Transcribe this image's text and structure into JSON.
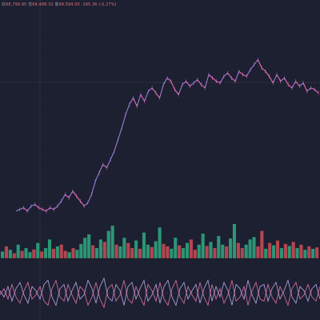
{
  "header": {
    "ohlc_label": "收",
    "close": "68,799.95",
    "low_label": "低",
    "low": "68,488.32",
    "vol_label": "量",
    "vol": "68,594.00",
    "change": "-185.36 (-0.27%)"
  },
  "colors": {
    "background": "#1c2030",
    "price_up": "#9c78d6",
    "price_down": "#e46ab0",
    "volume_up": "#2fa37e",
    "volume_down": "#c74a55",
    "osc_a": "#b9a6e8",
    "osc_b": "#e070a8",
    "crosshair": "#5b6275",
    "midline": "#4a5064"
  },
  "chart_data": [
    {
      "type": "line",
      "title": "",
      "xlabel": "",
      "ylabel": "",
      "note": "price panel, normalized price level 0-100 (no axis printed)",
      "ylim": [
        0,
        100
      ],
      "x": [
        0,
        1,
        2,
        3,
        4,
        5,
        6,
        7,
        8,
        9,
        10,
        11,
        12,
        13,
        14,
        15,
        16,
        17,
        18,
        19,
        20,
        21,
        22,
        23,
        24,
        25,
        26,
        27,
        28,
        29,
        30,
        31,
        32,
        33,
        34,
        35,
        36,
        37,
        38,
        39,
        40,
        41,
        42,
        43,
        44,
        45,
        46,
        47,
        48,
        49,
        50,
        51,
        52,
        53,
        54,
        55,
        56,
        57,
        58,
        59,
        60,
        61,
        62,
        63,
        64,
        65,
        66,
        67,
        68,
        69,
        70,
        71,
        72,
        73,
        74,
        75,
        76,
        77,
        78,
        79,
        80
      ],
      "values": [
        2,
        3,
        4,
        2,
        5,
        6,
        4,
        3,
        2,
        4,
        3,
        5,
        8,
        12,
        10,
        14,
        11,
        8,
        5,
        7,
        12,
        20,
        25,
        30,
        28,
        33,
        38,
        45,
        52,
        60,
        66,
        70,
        65,
        72,
        68,
        74,
        76,
        73,
        70,
        78,
        82,
        80,
        75,
        72,
        78,
        80,
        77,
        79,
        81,
        78,
        76,
        84,
        82,
        80,
        79,
        83,
        85,
        82,
        80,
        86,
        84,
        83,
        87,
        90,
        93,
        88,
        86,
        83,
        79,
        84,
        80,
        82,
        78,
        76,
        80,
        77,
        79,
        74,
        76,
        75,
        73
      ],
      "grid": false
    },
    {
      "type": "bar",
      "note": "volume panel, relative volume 0-100",
      "ylim": [
        0,
        100
      ],
      "x": [
        0,
        1,
        2,
        3,
        4,
        5,
        6,
        7,
        8,
        9,
        10,
        11,
        12,
        13,
        14,
        15,
        16,
        17,
        18,
        19,
        20,
        21,
        22,
        23,
        24,
        25,
        26,
        27,
        28,
        29,
        30,
        31,
        32,
        33,
        34,
        35,
        36,
        37,
        38,
        39,
        40,
        41,
        42,
        43,
        44,
        45,
        46,
        47,
        48,
        49,
        50,
        51,
        52,
        53,
        54,
        55,
        56,
        57,
        58,
        59,
        60,
        61,
        62,
        63,
        64,
        65,
        66,
        67,
        68,
        69,
        70,
        71,
        72,
        73,
        74,
        75,
        76,
        77,
        78,
        79,
        80
      ],
      "values": [
        20,
        35,
        25,
        15,
        40,
        22,
        30,
        18,
        26,
        45,
        20,
        30,
        55,
        28,
        35,
        40,
        22,
        18,
        30,
        25,
        42,
        60,
        70,
        38,
        30,
        55,
        48,
        80,
        95,
        40,
        35,
        60,
        45,
        30,
        52,
        28,
        75,
        40,
        33,
        50,
        90,
        42,
        35,
        28,
        60,
        38,
        30,
        45,
        55,
        25,
        40,
        72,
        36,
        48,
        30,
        65,
        40,
        35,
        58,
        100,
        45,
        30,
        40,
        55,
        62,
        35,
        80,
        28,
        45,
        38,
        52,
        30,
        42,
        36,
        48,
        30,
        40,
        25,
        35,
        28,
        32
      ],
      "directions": [
        "u",
        "d",
        "u",
        "d",
        "u",
        "d",
        "u",
        "u",
        "d",
        "u",
        "d",
        "u",
        "u",
        "d",
        "u",
        "d",
        "d",
        "u",
        "d",
        "u",
        "u",
        "u",
        "u",
        "d",
        "u",
        "u",
        "d",
        "u",
        "u",
        "d",
        "u",
        "u",
        "d",
        "d",
        "u",
        "d",
        "u",
        "u",
        "d",
        "u",
        "u",
        "d",
        "d",
        "u",
        "u",
        "d",
        "u",
        "u",
        "d",
        "d",
        "u",
        "u",
        "d",
        "u",
        "d",
        "u",
        "u",
        "d",
        "u",
        "u",
        "d",
        "d",
        "u",
        "u",
        "u",
        "d",
        "d",
        "u",
        "d",
        "u",
        "d",
        "u",
        "d",
        "u",
        "d",
        "u",
        "d",
        "u",
        "d",
        "u",
        "d"
      ]
    },
    {
      "type": "line",
      "note": "oscillator panel, normalized -100..100",
      "ylim": [
        -100,
        100
      ],
      "series": [
        {
          "values": [
            10,
            -20,
            30,
            -40,
            20,
            50,
            -10,
            -50,
            30,
            10,
            -30,
            40,
            60,
            -20,
            -60,
            20,
            40,
            -40,
            10,
            50,
            -30,
            -10,
            60,
            20,
            -50,
            30,
            70,
            -20,
            -40,
            40,
            10,
            -60,
            30,
            50,
            -30,
            20,
            60,
            -40,
            -10,
            40,
            -50,
            30,
            60,
            -20,
            -60,
            20,
            50,
            -30,
            10,
            40,
            -50,
            20,
            60,
            -40,
            30,
            -20,
            50,
            10,
            -60,
            40,
            20,
            -30,
            60,
            -10,
            -50,
            30,
            40,
            -40,
            20,
            50,
            -30,
            10,
            60,
            -20,
            -50,
            30,
            10,
            -40,
            20,
            40,
            -30
          ]
        },
        {
          "values": [
            -10,
            20,
            -30,
            40,
            -20,
            -50,
            10,
            50,
            -30,
            -10,
            30,
            -40,
            -60,
            20,
            60,
            -20,
            -40,
            40,
            -10,
            -50,
            30,
            10,
            -60,
            -20,
            50,
            -30,
            -70,
            20,
            40,
            -40,
            -10,
            60,
            -30,
            -50,
            30,
            -20,
            -60,
            40,
            10,
            -40,
            50,
            -30,
            -60,
            20,
            60,
            -20,
            -50,
            30,
            -10,
            -40,
            50,
            -20,
            -60,
            40,
            -30,
            20,
            -50,
            -10,
            60,
            -40,
            -20,
            30,
            -60,
            10,
            50,
            -30,
            -40,
            40,
            -20,
            -50,
            30,
            -10,
            -60,
            20,
            50,
            -30,
            -10,
            40,
            -20,
            -40,
            30
          ]
        }
      ]
    }
  ]
}
